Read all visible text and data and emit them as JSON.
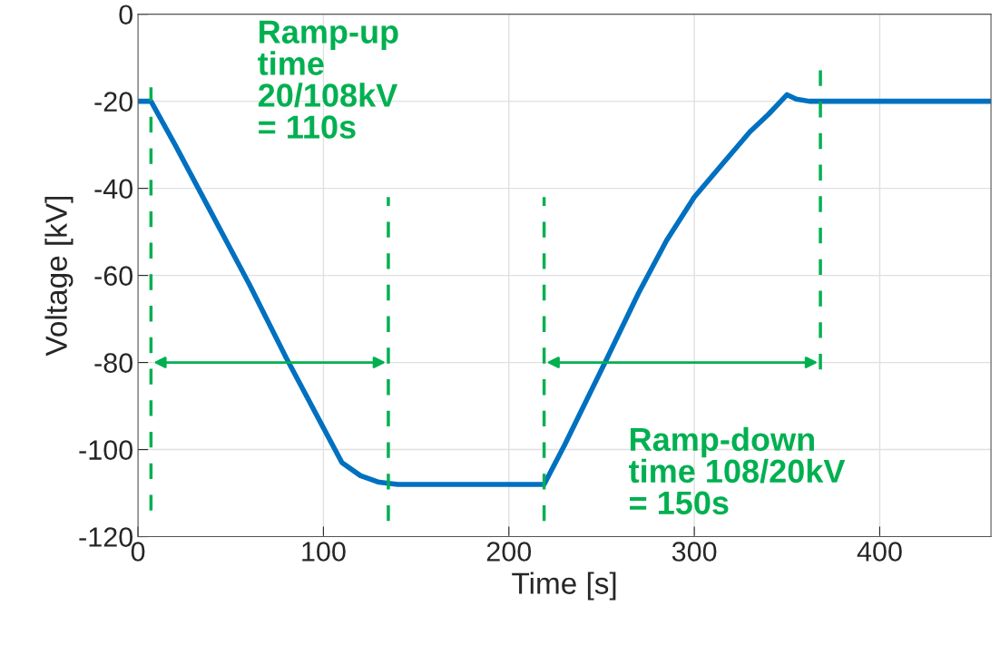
{
  "chart_data": {
    "type": "line",
    "xlabel": "Time [s]",
    "ylabel": "Voltage [kV]",
    "series": [
      {
        "color": "#0070c0",
        "x": [
          0,
          7,
          20,
          40,
          60,
          80,
          100,
          110,
          120,
          130,
          140,
          160,
          180,
          200,
          219,
          230,
          253,
          270,
          285,
          300,
          316,
          330,
          340,
          350,
          355,
          362,
          370,
          400,
          430,
          460
        ],
        "values": [
          -20,
          -20,
          -30,
          -46,
          -62,
          -79,
          -95,
          -103,
          -106,
          -107.5,
          -108,
          -108,
          -108,
          -108,
          -108,
          -99,
          -79,
          -64,
          -52,
          -42,
          -34,
          -27,
          -23,
          -18.5,
          -19.5,
          -20,
          -20,
          -20,
          -20,
          -20
        ]
      }
    ],
    "xlim": [
      0,
      460
    ],
    "xticks": [
      0,
      100,
      200,
      300,
      400
    ],
    "ylim": [
      -120,
      0
    ],
    "yticks": [
      -120,
      -100,
      -80,
      -60,
      -40,
      -20,
      0
    ],
    "grid": true,
    "marker": "none",
    "line_style": "solid",
    "ref_lines": [
      {
        "axis": "x",
        "value": 7,
        "color": "#00b050",
        "line_style": "dashed"
      },
      {
        "axis": "x",
        "value": 135,
        "color": "#00b050",
        "line_style": "dashed"
      },
      {
        "axis": "x",
        "value": 219,
        "color": "#00b050",
        "line_style": "dashed"
      },
      {
        "axis": "x",
        "value": 368,
        "color": "#00b050",
        "line_style": "dashed"
      }
    ],
    "annotations": [
      "Ramp-up\ntime\n20/108kV\n= 110s",
      "Ramp-down\ntime 108/20kV\n= 150s"
    ]
  }
}
